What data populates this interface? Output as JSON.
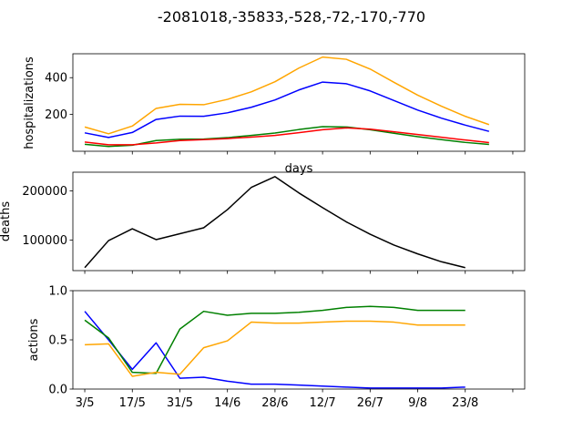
{
  "figure": {
    "title": "-2081018,-35833,-528,-72,-170,-770"
  },
  "chart_data": [
    {
      "type": "line",
      "ylabel": "hospitalizations",
      "xlabel": "days",
      "xlim": [
        -0.5,
        18.5
      ],
      "ylim": [
        0,
        530
      ],
      "yticks": [
        200,
        400
      ],
      "x_tick_labels": [],
      "series": [
        {
          "color": "#ffa500",
          "values": [
            132,
            95,
            137,
            233,
            255,
            253,
            282,
            323,
            378,
            452,
            512,
            500,
            447,
            375,
            305,
            245,
            190,
            145
          ]
        },
        {
          "color": "#0000ff",
          "values": [
            100,
            75,
            102,
            173,
            191,
            190,
            209,
            239,
            279,
            333,
            376,
            367,
            328,
            276,
            224,
            180,
            142,
            108
          ]
        },
        {
          "color": "#008000",
          "values": [
            38,
            26,
            33,
            58,
            65,
            66,
            74,
            86,
            99,
            118,
            134,
            132,
            117,
            98,
            79,
            63,
            48,
            37
          ]
        },
        {
          "color": "#ff0000",
          "values": [
            50,
            35,
            35,
            45,
            58,
            63,
            69,
            77,
            86,
            101,
            117,
            127,
            120,
            106,
            91,
            76,
            61,
            47
          ]
        }
      ]
    },
    {
      "type": "line",
      "ylabel": "deaths",
      "xlim": [
        -0.5,
        18.5
      ],
      "ylim": [
        38000,
        238000
      ],
      "yticks": [
        100000,
        200000
      ],
      "x_tick_labels": [],
      "series": [
        {
          "color": "#000000",
          "values": [
            44000,
            99000,
            123000,
            101000,
            113000,
            125000,
            162000,
            207000,
            229000,
            196000,
            166000,
            137000,
            112000,
            90000,
            72000,
            56000,
            44000
          ]
        }
      ]
    },
    {
      "type": "line",
      "ylabel": "actions",
      "xlim": [
        -0.5,
        18.5
      ],
      "ylim": [
        0.0,
        1.0
      ],
      "yticks": [
        0.0,
        0.5,
        1.0
      ],
      "x_tick_labels": [
        "3/5",
        "17/5",
        "31/5",
        "14/6",
        "28/6",
        "12/7",
        "26/7",
        "9/8",
        "23/8"
      ],
      "series": [
        {
          "color": "#0000ff",
          "values": [
            0.79,
            0.5,
            0.2,
            0.47,
            0.11,
            0.12,
            0.08,
            0.05,
            0.05,
            0.04,
            0.03,
            0.02,
            0.01,
            0.01,
            0.01,
            0.01,
            0.02
          ]
        },
        {
          "color": "#008000",
          "values": [
            0.7,
            0.52,
            0.17,
            0.16,
            0.61,
            0.79,
            0.75,
            0.77,
            0.77,
            0.78,
            0.8,
            0.83,
            0.84,
            0.83,
            0.8,
            0.8,
            0.8
          ]
        },
        {
          "color": "#ffa500",
          "values": [
            0.45,
            0.46,
            0.13,
            0.17,
            0.15,
            0.42,
            0.49,
            0.68,
            0.67,
            0.67,
            0.68,
            0.69,
            0.69,
            0.68,
            0.65,
            0.65,
            0.65
          ]
        }
      ]
    }
  ]
}
